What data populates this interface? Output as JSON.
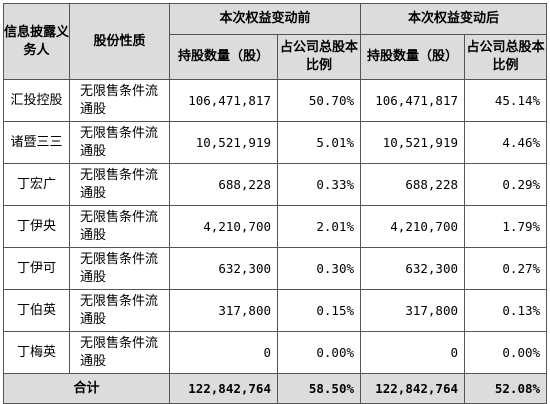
{
  "table": {
    "headers": {
      "holder": "信息披露义务人",
      "nature": "股份性质",
      "before": "本次权益变动前",
      "after": "本次权益变动后",
      "shares_before": "持股数量（股）",
      "ratio_before": "占公司总股本比例",
      "shares_after": "持股数量（股）",
      "ratio_after": "占公司总股本比例"
    },
    "rows": [
      {
        "holder": "汇投控股",
        "nature": "无限售条件流通股",
        "shares_before": "106,471,817",
        "ratio_before": "50.70%",
        "shares_after": "106,471,817",
        "ratio_after": "45.14%"
      },
      {
        "holder": "诸暨三三",
        "nature": "无限售条件流通股",
        "shares_before": "10,521,919",
        "ratio_before": "5.01%",
        "shares_after": "10,521,919",
        "ratio_after": "4.46%"
      },
      {
        "holder": "丁宏广",
        "nature": "无限售条件流通股",
        "shares_before": "688,228",
        "ratio_before": "0.33%",
        "shares_after": "688,228",
        "ratio_after": "0.29%"
      },
      {
        "holder": "丁伊央",
        "nature": "无限售条件流通股",
        "shares_before": "4,210,700",
        "ratio_before": "2.01%",
        "shares_after": "4,210,700",
        "ratio_after": "1.79%"
      },
      {
        "holder": "丁伊可",
        "nature": "无限售条件流通股",
        "shares_before": "632,300",
        "ratio_before": "0.30%",
        "shares_after": "632,300",
        "ratio_after": "0.27%"
      },
      {
        "holder": "丁伯英",
        "nature": "无限售条件流通股",
        "shares_before": "317,800",
        "ratio_before": "0.15%",
        "shares_after": "317,800",
        "ratio_after": "0.13%"
      },
      {
        "holder": "丁梅英",
        "nature": "无限售条件流通股",
        "shares_before": "0",
        "ratio_before": "0.00%",
        "shares_after": "0",
        "ratio_after": "0.00%"
      }
    ],
    "total": {
      "label": "合计",
      "shares_before": "122,842,764",
      "ratio_before": "58.50%",
      "shares_after": "122,842,764",
      "ratio_after": "52.08%"
    }
  },
  "colors": {
    "header_bg": "#dcdcdc",
    "border": "#555555"
  }
}
